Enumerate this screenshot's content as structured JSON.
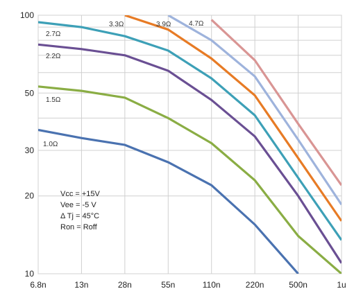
{
  "chart_data": {
    "type": "line",
    "x": [
      "6.8n",
      "13n",
      "28n",
      "55n",
      "110n",
      "220n",
      "500n",
      "1u"
    ],
    "y_ticks": [
      "100",
      "50",
      "30",
      "20",
      "10"
    ],
    "y_tick_values": [
      100,
      50,
      30,
      20,
      10
    ],
    "y_scale": "log",
    "ylim": [
      10,
      100
    ],
    "grid": true,
    "series": [
      {
        "name": "1.0Ω",
        "color": "#4a72b0",
        "values": [
          36,
          33.5,
          31.5,
          27,
          22,
          15.5,
          10,
          null
        ]
      },
      {
        "name": "1.5Ω",
        "color": "#8aad44",
        "values": [
          53,
          51,
          48,
          40,
          32,
          23,
          14,
          10
        ]
      },
      {
        "name": "2.2Ω",
        "color": "#6a4f93",
        "values": [
          77,
          74,
          70,
          61,
          47,
          34,
          20,
          11
        ]
      },
      {
        "name": "2.7Ω",
        "color": "#3da0b7",
        "values": [
          94,
          90,
          83,
          73,
          57,
          41,
          23.5,
          13.5
        ]
      },
      {
        "name": "3.3Ω",
        "color": "#e77b25",
        "values": [
          null,
          null,
          100,
          88,
          68,
          49,
          28,
          16
        ]
      },
      {
        "name": "3.9Ω",
        "color": "#9eb3dc",
        "values": [
          null,
          null,
          null,
          100,
          80,
          58,
          33,
          18.5
        ]
      },
      {
        "name": "4.7Ω",
        "color": "#d99594",
        "values": [
          null,
          null,
          null,
          null,
          96,
          67,
          38,
          22
        ]
      }
    ],
    "annotations": [
      "Vcc =  +15V",
      "Vee =  -5 V",
      "Δ Tj = 45°C",
      "Ron = Roff"
    ]
  }
}
